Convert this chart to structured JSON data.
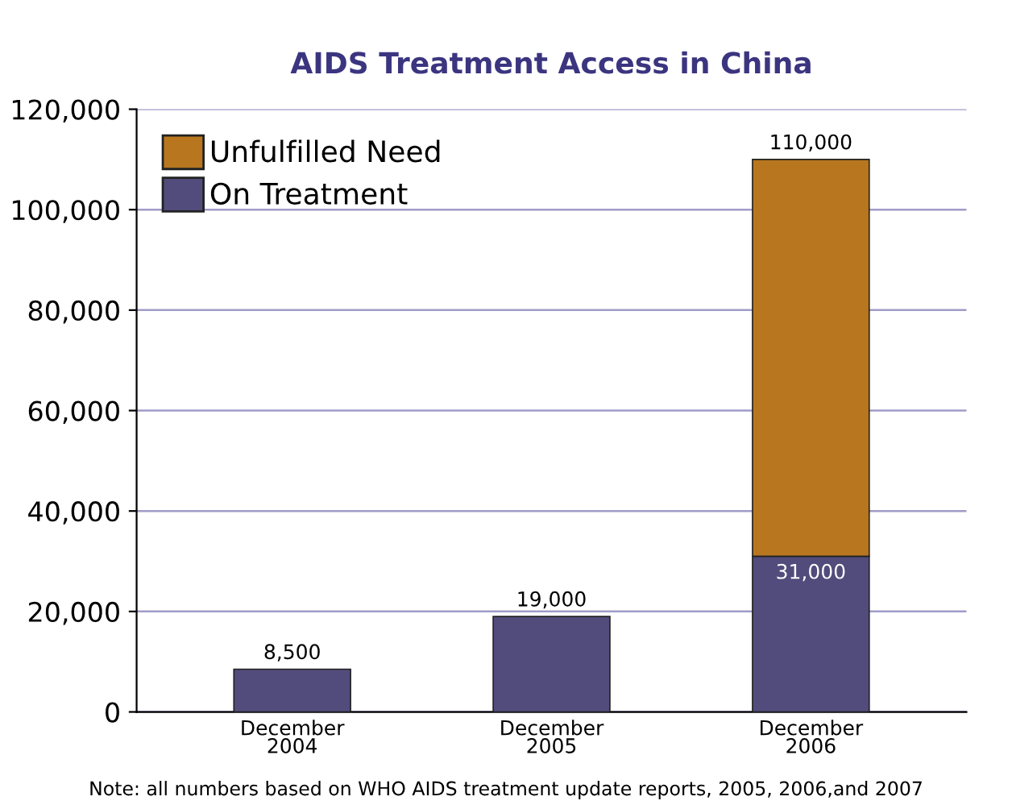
{
  "chart_data": {
    "type": "bar",
    "title": "AIDS Treatment Access in China",
    "categories": [
      "December\n2004",
      "December\n2005",
      "December\n2006"
    ],
    "stacked": true,
    "series": [
      {
        "name": "On Treatment",
        "color": "#524c7c",
        "values": [
          8500,
          19000,
          31000
        ],
        "value_labels": [
          null,
          null,
          "31,000"
        ]
      },
      {
        "name": "Unfulfilled Need",
        "color": "#b8771f",
        "values": [
          null,
          null,
          79000
        ]
      }
    ],
    "totals": [
      "8,500",
      "19,000",
      "110,000"
    ],
    "ylim": [
      0,
      120000
    ],
    "yticks": [
      {
        "value": 0,
        "label": "0"
      },
      {
        "value": 20000,
        "label": "20,000"
      },
      {
        "value": 40000,
        "label": "40,000"
      },
      {
        "value": 60000,
        "label": "60,000"
      },
      {
        "value": 80000,
        "label": "80,000"
      },
      {
        "value": 100000,
        "label": "100,000"
      },
      {
        "value": 120000,
        "label": "120,000"
      }
    ],
    "grid": "y",
    "legend": "top left",
    "annotations": [
      "Note: all numbers based on WHO AIDS treatment update reports, 2005, 2006,and 2007"
    ]
  }
}
